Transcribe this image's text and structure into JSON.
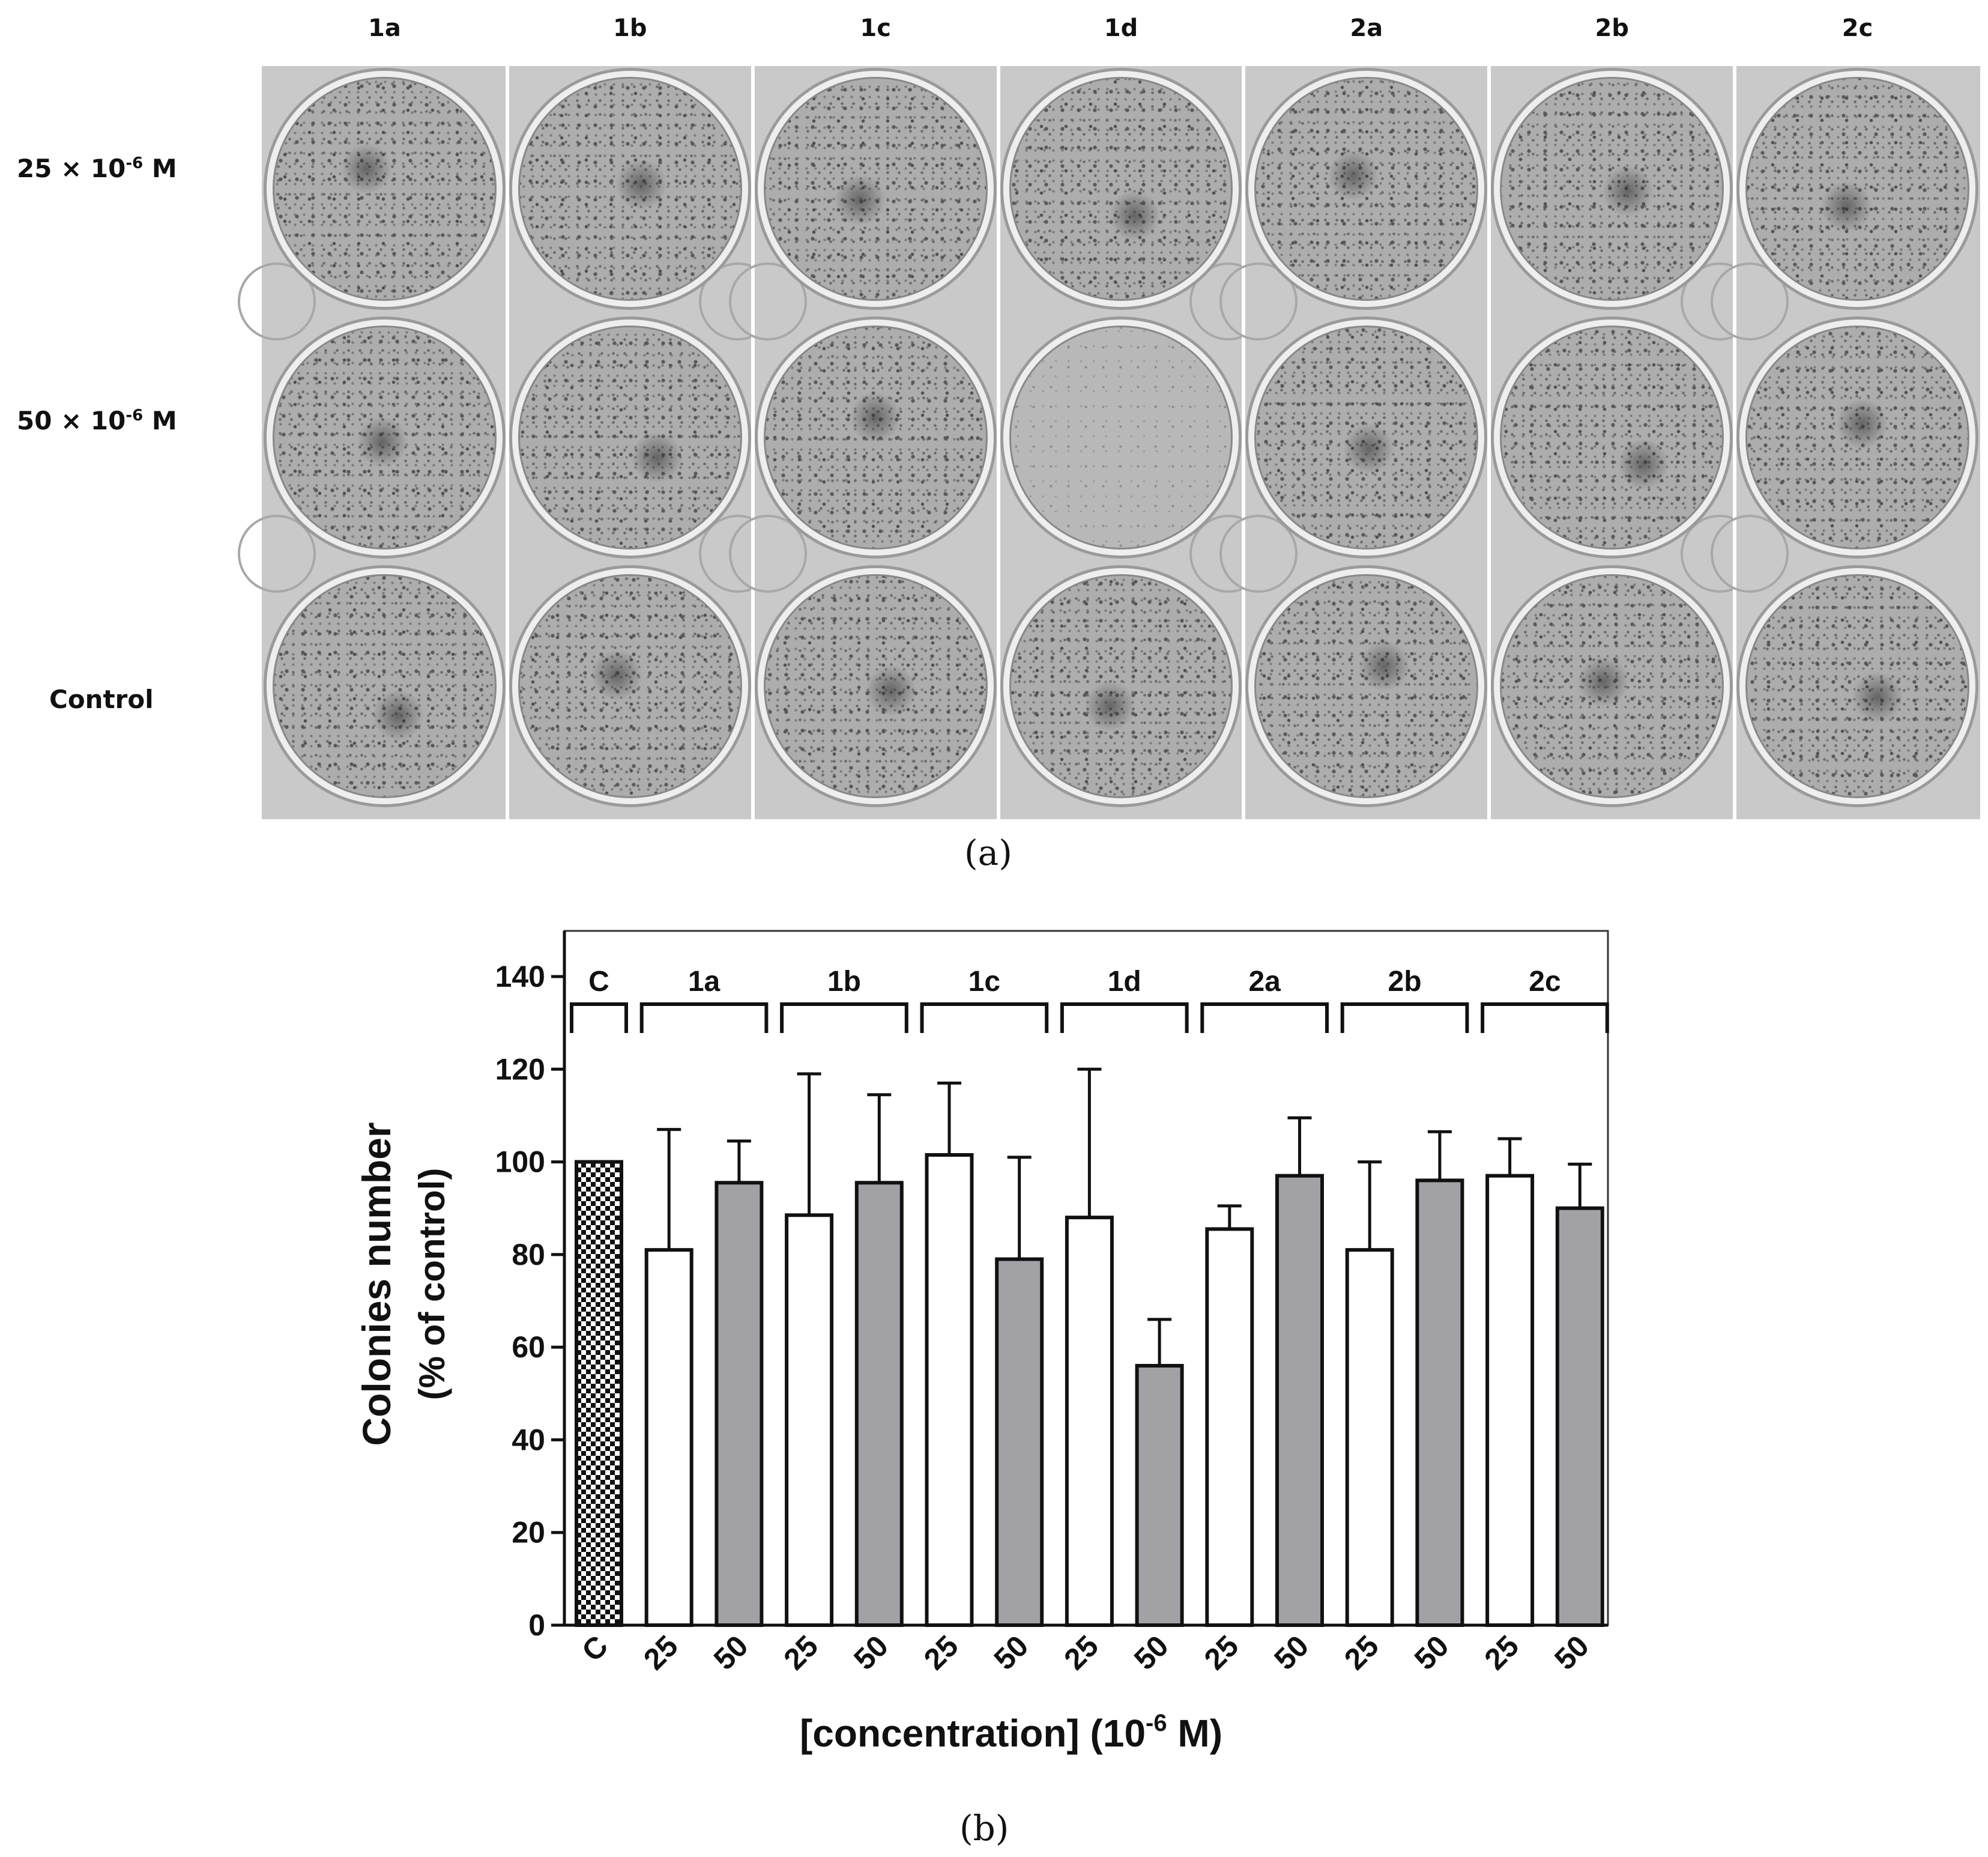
{
  "panel_a": {
    "tag": "(a)",
    "column_labels": [
      "1a",
      "1b",
      "1c",
      "1d",
      "2a",
      "2b",
      "2c"
    ],
    "row_labels": [
      {
        "base": "25 × 10",
        "exp": "-6",
        "unit": " M"
      },
      {
        "base": "50 × 10",
        "exp": "-6",
        "unit": " M"
      },
      {
        "text": "Control"
      }
    ]
  },
  "panel_b": {
    "tag": "(b)"
  },
  "chart_data": {
    "type": "bar",
    "ylabel_line1": "Colonies number",
    "ylabel_line2": "(% of control)",
    "xlabel": "[concentration] (10",
    "xlabel_exp": "-6",
    "xlabel_unit": " M)",
    "ylim": [
      0,
      150
    ],
    "yticks": [
      0,
      20,
      40,
      60,
      80,
      100,
      120,
      140
    ],
    "categories": [
      "C",
      "25",
      "50",
      "25",
      "50",
      "25",
      "50",
      "25",
      "50",
      "25",
      "50",
      "25",
      "50",
      "25",
      "50"
    ],
    "groups": [
      {
        "label": "C",
        "bars": [
          0
        ]
      },
      {
        "label": "1a",
        "bars": [
          1,
          2
        ]
      },
      {
        "label": "1b",
        "bars": [
          3,
          4
        ]
      },
      {
        "label": "1c",
        "bars": [
          5,
          6
        ]
      },
      {
        "label": "1d",
        "bars": [
          7,
          8
        ]
      },
      {
        "label": "2a",
        "bars": [
          9,
          10
        ]
      },
      {
        "label": "2b",
        "bars": [
          11,
          12
        ]
      },
      {
        "label": "2c",
        "bars": [
          13,
          14
        ]
      }
    ],
    "values": [
      100,
      81,
      95.5,
      88.5,
      95.5,
      101.5,
      79,
      88,
      56,
      85.5,
      97,
      81,
      96,
      97,
      90
    ],
    "errors": [
      0,
      26,
      9,
      30.5,
      19,
      15.5,
      22,
      32,
      10,
      5,
      12.5,
      19,
      10.5,
      8,
      9.5
    ],
    "fill": [
      "checker",
      "white",
      "gray",
      "white",
      "gray",
      "white",
      "gray",
      "white",
      "gray",
      "white",
      "gray",
      "white",
      "gray",
      "white",
      "gray"
    ],
    "colors": {
      "white": "#ffffff",
      "gray": "#a2a2a6",
      "checker_dark": "#111111",
      "checker_light": "#ffffff",
      "stroke": "#111111"
    }
  }
}
